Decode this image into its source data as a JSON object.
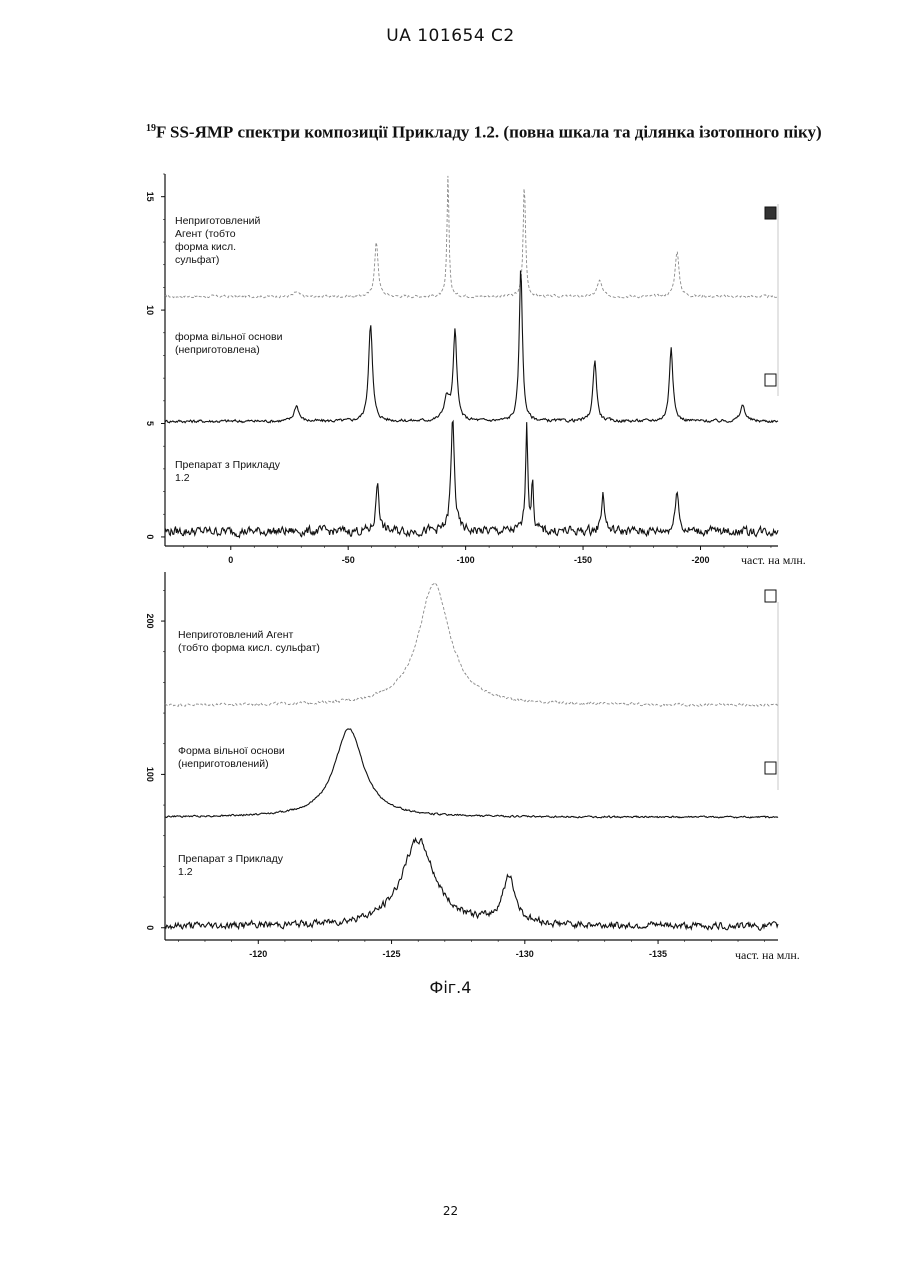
{
  "header": {
    "doc_id": "UA   101654   C2"
  },
  "title": {
    "sup": "19",
    "text": "F SS-ЯМР спектри композиції Прикладу 1.2.  (повна шкала та ділянка ізотопного піку)"
  },
  "figure_caption": "Фіг.4",
  "page_number": "22",
  "colors": {
    "ink": "#111111",
    "faded_trace": "#8a8a8a",
    "background": "#ffffff"
  },
  "chart_data": [
    {
      "type": "line",
      "xlabel": "част. на млн.",
      "x_reversed": true,
      "xlim": [
        28,
        -233
      ],
      "ylim": [
        -0.4,
        16
      ],
      "xticks": [
        "0",
        "-50",
        "-100",
        "-150",
        "-200"
      ],
      "xtick_values": [
        0,
        -50,
        -100,
        -150,
        -200
      ],
      "yticks": [
        "0",
        "5",
        "10",
        "15"
      ],
      "ytick_values": [
        0,
        5,
        10,
        15
      ],
      "series": [
        {
          "name": "Неприготовлений Агент  (тобто форма кисл. сульфат)",
          "label_lines": [
            "Неприготовлений",
            "Агент  (тобто",
            "форма кисл.",
            "сульфат)"
          ],
          "baseline": 10.6,
          "noise": 0.05,
          "style": "faded",
          "peaks": [
            [
              -62,
              2.4,
              0.9
            ],
            [
              -92.5,
              5.4,
              0.5
            ],
            [
              -125,
              5.0,
              0.6
            ],
            [
              -157,
              0.7,
              1.2
            ],
            [
              -190,
              2.0,
              1.0
            ],
            [
              -28,
              0.2,
              1.2
            ]
          ]
        },
        {
          "name": "форма вільної основи (неприготовлена)",
          "label_lines": [
            "форма вільної основи",
            "(неприготовлена)"
          ],
          "baseline": 5.1,
          "noise": 0.06,
          "style": "solid",
          "peaks": [
            [
              -28,
              0.7,
              1.2
            ],
            [
              -59.5,
              4.3,
              1.0
            ],
            [
              -92,
              1.0,
              1.5
            ],
            [
              -95.5,
              3.9,
              0.9
            ],
            [
              -123.5,
              6.8,
              0.8
            ],
            [
              -155,
              2.7,
              0.9
            ],
            [
              -187.5,
              3.3,
              0.9
            ],
            [
              -218,
              0.7,
              1.2
            ]
          ]
        },
        {
          "name": "Препарат з Прикладу 1.2",
          "label_lines": [
            "Препарат з Прикладу",
            "1.2"
          ],
          "baseline": 0.25,
          "noise": 0.18,
          "style": "solid",
          "peaks": [
            [
              -62.5,
              2.2,
              0.8
            ],
            [
              -94.5,
              4.9,
              0.9
            ],
            [
              -126,
              4.7,
              0.6
            ],
            [
              -128.5,
              2.1,
              0.5
            ],
            [
              -158.5,
              1.7,
              0.8
            ],
            [
              -190,
              2.0,
              0.8
            ]
          ]
        }
      ]
    },
    {
      "type": "line",
      "xlabel": "част. на млн.",
      "x_reversed": true,
      "xlim": [
        -116.5,
        -139.5
      ],
      "ylim": [
        -8,
        232
      ],
      "xticks": [
        "-120",
        "-125",
        "-130",
        "-135"
      ],
      "xtick_values": [
        -120,
        -125,
        -130,
        -135
      ],
      "yticks": [
        "0",
        "100",
        "200"
      ],
      "ytick_values": [
        0,
        100,
        200
      ],
      "series": [
        {
          "name": "Неприготовлений Агент (тобто форма кисл.  сульфат)",
          "label_lines": [
            "Неприготовлений Агент",
            "(тобто форма кисл.  сульфат)"
          ],
          "baseline": 145,
          "noise": 0.8,
          "style": "faded",
          "peaks": [
            [
              -126.6,
              80,
              0.7
            ]
          ]
        },
        {
          "name": "Форма вільної основи (неприготовлений)",
          "label_lines": [
            "Форма вільної основи",
            "(неприготовлений)"
          ],
          "baseline": 72,
          "noise": 0.5,
          "style": "solid",
          "peaks": [
            [
              -123.4,
              58,
              0.65
            ]
          ]
        },
        {
          "name": "Препарат з Прикладу 1.2",
          "label_lines": [
            "Препарат з Прикладу",
            "1.2"
          ],
          "baseline": 1,
          "noise": 2.0,
          "style": "solid",
          "peaks": [
            [
              -126.0,
              56,
              0.75
            ],
            [
              -129.4,
              30,
              0.3
            ]
          ]
        }
      ]
    }
  ]
}
